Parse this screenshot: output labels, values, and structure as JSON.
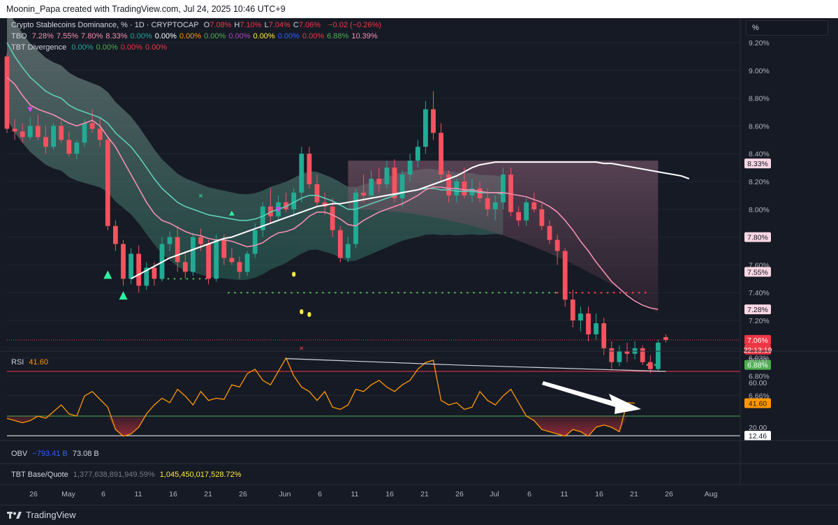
{
  "header": {
    "credit": "Moonin_Papa created with TradingView.com, Jul 24, 2025 10:46 UTC+9"
  },
  "legend": {
    "main_prefix": "Crypto Stablecoins Dominance, % · 1D · CRYPTOCAP",
    "ohlc": [
      {
        "k": "O",
        "v": "7.08%"
      },
      {
        "k": "H",
        "v": "7.10%"
      },
      {
        "k": "L",
        "v": "7.04%"
      },
      {
        "k": "C",
        "v": "7.06%"
      }
    ],
    "change": "−0.02 (−0.26%)",
    "tbo_label": "TBO",
    "tbo_values": [
      {
        "v": "7.28%",
        "c": "#f48fb1"
      },
      {
        "v": "7.55%",
        "c": "#f48fb1"
      },
      {
        "v": "7.80%",
        "c": "#f48fb1"
      },
      {
        "v": "8.33%",
        "c": "#f48fb1"
      },
      {
        "v": "0.00%",
        "c": "#26a69a"
      },
      {
        "v": "0.00%",
        "c": "#ffffff"
      },
      {
        "v": "0.00%",
        "c": "#ff9800"
      },
      {
        "v": "0.00%",
        "c": "#4caf50"
      },
      {
        "v": "0.00%",
        "c": "#ab47bc"
      },
      {
        "v": "0.00%",
        "c": "#ffeb3b"
      },
      {
        "v": "0.00%",
        "c": "#2962ff"
      },
      {
        "v": "0.00%",
        "c": "#f23645"
      },
      {
        "v": "6.88%",
        "c": "#4caf50"
      },
      {
        "v": "10.39%",
        "c": "#f48fb1"
      }
    ],
    "div_label": "TBT Divergence",
    "div_values": [
      {
        "v": "0.00%",
        "c": "#26a69a"
      },
      {
        "v": "0.00%",
        "c": "#4caf50"
      },
      {
        "v": "0.00%",
        "c": "#f23645"
      },
      {
        "v": "0.00%",
        "c": "#f23645"
      }
    ],
    "rsi_label": "RSI",
    "rsi_value": "41.60",
    "obv_label": "OBV",
    "obv_v1": "−793.41 B",
    "obv_v2": "73.08 B",
    "base_label": "TBT Base/Quote",
    "base_v1": "1,377,638,891,949.59%",
    "base_v2": "1,045,450,017,528.72%"
  },
  "pct_button": "%",
  "footer": {
    "brand": "TradingView"
  },
  "chart_data": {
    "type": "candlestick",
    "price_axis": {
      "ticks": [
        "9.20%",
        "9.00%",
        "8.80%",
        "8.60%",
        "8.40%",
        "8.20%",
        "8.00%",
        "7.80%",
        "7.60%",
        "7.40%",
        "7.20%",
        "7.00%",
        "6.93%",
        "6.80%",
        "6.66%"
      ],
      "tick_values": [
        9.2,
        9.0,
        8.8,
        8.6,
        8.4,
        8.2,
        8.0,
        7.8,
        7.6,
        7.4,
        7.2,
        7.0,
        6.93,
        6.8,
        6.66
      ],
      "badges": [
        {
          "label": "8.33%",
          "value": 8.33,
          "bg": "#f8d7e3",
          "fg": "#131722"
        },
        {
          "label": "7.80%",
          "value": 7.8,
          "bg": "#f8d7e3",
          "fg": "#131722"
        },
        {
          "label": "7.55%",
          "value": 7.55,
          "bg": "#f8d7e3",
          "fg": "#131722"
        },
        {
          "label": "7.28%",
          "value": 7.28,
          "bg": "#f8d7e3",
          "fg": "#131722"
        },
        {
          "label": "7.06%",
          "value": 7.06,
          "bg": "#f23645",
          "fg": "#ffffff"
        },
        {
          "label": "22:13:19",
          "value": 6.99,
          "bg": "#f23645",
          "fg": "#ffffff"
        },
        {
          "label": "6.88%",
          "value": 6.88,
          "bg": "#4caf50",
          "fg": "#ffffff"
        }
      ]
    },
    "time_axis": [
      "26",
      "May",
      "6",
      "11",
      "16",
      "21",
      "26",
      "Jun",
      "6",
      "11",
      "16",
      "21",
      "26",
      "Jul",
      "6",
      "11",
      "16",
      "21",
      "26",
      "Aug"
    ],
    "candles": [
      [
        9.1,
        9.12,
        8.55,
        8.58
      ],
      [
        8.58,
        8.65,
        8.5,
        8.56
      ],
      [
        8.56,
        8.62,
        8.48,
        8.52
      ],
      [
        8.52,
        8.66,
        8.5,
        8.6
      ],
      [
        8.6,
        8.68,
        8.5,
        8.52
      ],
      [
        8.52,
        8.6,
        8.4,
        8.45
      ],
      [
        8.45,
        8.62,
        8.43,
        8.6
      ],
      [
        8.6,
        8.64,
        8.48,
        8.5
      ],
      [
        8.5,
        8.56,
        8.38,
        8.4
      ],
      [
        8.4,
        8.5,
        8.36,
        8.48
      ],
      [
        8.48,
        8.65,
        8.45,
        8.62
      ],
      [
        8.62,
        8.72,
        8.55,
        8.58
      ],
      [
        8.58,
        8.66,
        8.45,
        8.5
      ],
      [
        8.5,
        8.52,
        7.85,
        7.88
      ],
      [
        7.88,
        7.92,
        7.7,
        7.75
      ],
      [
        7.75,
        7.78,
        7.45,
        7.5
      ],
      [
        7.5,
        7.72,
        7.46,
        7.68
      ],
      [
        7.68,
        7.74,
        7.4,
        7.45
      ],
      [
        7.45,
        7.62,
        7.42,
        7.58
      ],
      [
        7.58,
        7.62,
        7.45,
        7.5
      ],
      [
        7.5,
        7.8,
        7.48,
        7.75
      ],
      [
        7.75,
        7.84,
        7.7,
        7.8
      ],
      [
        7.8,
        7.88,
        7.55,
        7.62
      ],
      [
        7.62,
        7.7,
        7.5,
        7.55
      ],
      [
        7.55,
        7.83,
        7.52,
        7.8
      ],
      [
        7.8,
        7.86,
        7.7,
        7.75
      ],
      [
        7.75,
        7.78,
        7.46,
        7.5
      ],
      [
        7.5,
        7.82,
        7.48,
        7.78
      ],
      [
        7.78,
        7.82,
        7.6,
        7.65
      ],
      [
        7.65,
        7.72,
        7.6,
        7.62
      ],
      [
        7.62,
        7.66,
        7.5,
        7.55
      ],
      [
        7.55,
        7.7,
        7.52,
        7.68
      ],
      [
        7.68,
        7.9,
        7.65,
        7.85
      ],
      [
        7.85,
        8.05,
        7.8,
        8.02
      ],
      [
        8.02,
        8.15,
        7.9,
        7.95
      ],
      [
        7.95,
        8.1,
        7.92,
        8.05
      ],
      [
        8.05,
        8.12,
        7.98,
        8.0
      ],
      [
        8.0,
        8.15,
        7.95,
        8.12
      ],
      [
        8.12,
        8.45,
        8.05,
        8.4
      ],
      [
        8.4,
        8.45,
        8.15,
        8.18
      ],
      [
        8.18,
        8.25,
        8.02,
        8.05
      ],
      [
        8.05,
        8.12,
        7.96,
        8.02
      ],
      [
        8.02,
        8.08,
        7.8,
        7.85
      ],
      [
        7.85,
        7.88,
        7.62,
        7.65
      ],
      [
        7.65,
        7.8,
        7.62,
        7.75
      ],
      [
        7.75,
        8.15,
        7.72,
        8.12
      ],
      [
        8.12,
        8.25,
        8.05,
        8.1
      ],
      [
        8.1,
        8.28,
        8.08,
        8.22
      ],
      [
        8.22,
        8.3,
        8.12,
        8.18
      ],
      [
        8.18,
        8.35,
        8.15,
        8.3
      ],
      [
        8.3,
        8.36,
        8.05,
        8.08
      ],
      [
        8.08,
        8.28,
        8.02,
        8.25
      ],
      [
        8.25,
        8.4,
        8.2,
        8.35
      ],
      [
        8.35,
        8.5,
        8.3,
        8.45
      ],
      [
        8.45,
        8.78,
        8.4,
        8.72
      ],
      [
        8.72,
        8.85,
        8.5,
        8.55
      ],
      [
        8.55,
        8.62,
        8.2,
        8.25
      ],
      [
        8.25,
        8.28,
        8.05,
        8.1
      ],
      [
        8.1,
        8.22,
        8.05,
        8.2
      ],
      [
        8.2,
        8.3,
        8.08,
        8.1
      ],
      [
        8.1,
        8.22,
        8.05,
        8.15
      ],
      [
        8.15,
        8.2,
        8.05,
        8.08
      ],
      [
        8.08,
        8.15,
        7.95,
        8.0
      ],
      [
        8.0,
        8.1,
        7.92,
        8.05
      ],
      [
        8.05,
        8.3,
        8.0,
        8.25
      ],
      [
        8.25,
        8.3,
        7.95,
        7.98
      ],
      [
        7.98,
        8.02,
        7.88,
        7.92
      ],
      [
        7.92,
        8.08,
        7.88,
        8.05
      ],
      [
        8.05,
        8.12,
        7.98,
        8.0
      ],
      [
        8.0,
        8.05,
        7.85,
        7.88
      ],
      [
        7.88,
        7.92,
        7.75,
        7.78
      ],
      [
        7.78,
        7.82,
        7.6,
        7.7
      ],
      [
        7.7,
        7.72,
        7.3,
        7.35
      ],
      [
        7.35,
        7.42,
        7.15,
        7.2
      ],
      [
        7.2,
        7.3,
        7.12,
        7.25
      ],
      [
        7.25,
        7.3,
        7.05,
        7.1
      ],
      [
        7.1,
        7.25,
        7.06,
        7.18
      ],
      [
        7.18,
        7.22,
        6.95,
        7.0
      ],
      [
        7.0,
        7.05,
        6.85,
        6.9
      ],
      [
        6.9,
        7.02,
        6.87,
        6.98
      ],
      [
        6.98,
        7.04,
        6.9,
        6.96
      ],
      [
        6.96,
        7.05,
        6.92,
        7.0
      ],
      [
        7.0,
        7.02,
        6.88,
        6.9
      ],
      [
        6.9,
        6.95,
        6.82,
        6.85
      ],
      [
        6.85,
        7.06,
        6.83,
        7.04
      ],
      [
        7.08,
        7.1,
        7.04,
        7.06
      ]
    ],
    "lines": {
      "pink_fast": [
        8.95,
        8.9,
        8.82,
        8.75,
        8.72,
        8.7,
        8.68,
        8.65,
        8.62,
        8.6,
        8.62,
        8.64,
        8.6,
        8.52,
        8.45,
        8.35,
        8.25,
        8.15,
        8.05,
        7.97,
        7.92,
        7.9,
        7.87,
        7.84,
        7.82,
        7.81,
        7.79,
        7.78,
        7.78,
        7.77,
        7.75,
        7.73,
        7.74,
        7.76,
        7.8,
        7.83,
        7.84,
        7.86,
        7.9,
        7.95,
        7.98,
        7.98,
        7.96,
        7.93,
        7.89,
        7.88,
        7.92,
        7.95,
        7.98,
        8.0,
        8.02,
        8.04,
        8.07,
        8.1,
        8.14,
        8.16,
        8.16,
        8.15,
        8.15,
        8.14,
        8.14,
        8.13,
        8.12,
        8.12,
        8.12,
        8.11,
        8.1,
        8.09,
        8.07,
        8.05,
        8.02,
        7.98,
        7.92,
        7.85,
        7.77,
        7.7,
        7.62,
        7.55,
        7.48,
        7.43,
        7.38,
        7.34,
        7.31,
        7.29,
        7.28
      ],
      "white_base": [
        null,
        null,
        null,
        null,
        null,
        null,
        null,
        null,
        null,
        null,
        null,
        null,
        null,
        null,
        null,
        null,
        7.5,
        7.53,
        7.56,
        7.59,
        7.62,
        7.65,
        7.67,
        7.69,
        7.71,
        7.73,
        7.75,
        7.77,
        7.79,
        7.8,
        7.82,
        7.84,
        7.86,
        7.88,
        7.9,
        7.92,
        7.94,
        7.96,
        7.98,
        8.0,
        8.02,
        8.03,
        8.04,
        8.04,
        8.05,
        8.06,
        8.07,
        8.08,
        8.09,
        8.1,
        8.11,
        8.12,
        8.13,
        8.14,
        8.16,
        8.18,
        8.2,
        8.22,
        8.24,
        8.27,
        8.3,
        8.32,
        8.33,
        8.34,
        8.34,
        8.34,
        8.34,
        8.34,
        8.34,
        8.34,
        8.34,
        8.34,
        8.34,
        8.34,
        8.34,
        8.34,
        8.34,
        8.33,
        8.33,
        8.32,
        8.31,
        8.3,
        8.29,
        8.28,
        8.27,
        8.26,
        8.25,
        8.24,
        8.22
      ],
      "teal_mid": [
        9.2,
        9.1,
        9.02,
        8.95,
        8.9,
        8.85,
        8.82,
        8.8,
        8.75,
        8.72,
        8.7,
        8.68,
        8.66,
        8.62,
        8.55,
        8.5,
        8.45,
        8.38,
        8.3,
        8.22,
        8.15,
        8.1,
        8.05,
        8.02,
        8.0,
        7.98,
        7.96,
        7.95,
        7.94,
        7.93,
        7.92,
        7.92,
        7.93,
        7.95,
        7.98,
        8.0,
        8.02,
        8.05,
        8.08,
        8.1,
        8.1,
        8.08,
        8.06,
        8.03,
        8.0,
        8.0,
        8.02,
        8.04,
        8.06,
        8.08,
        8.1,
        8.12,
        8.13,
        8.14,
        8.15,
        8.15,
        8.14,
        8.14,
        8.13,
        8.13,
        8.13,
        8.12,
        8.12,
        8.12,
        8.11
      ]
    },
    "markers": {
      "green_triangles_up": [
        [
          13,
          7.53
        ],
        [
          15,
          7.38
        ]
      ],
      "small_teal_triangles": [
        [
          29,
          7.97
        ]
      ],
      "purple_triangles_down": [
        [
          3,
          8.72
        ],
        [
          35,
          8.0
        ]
      ],
      "green_x": [
        [
          25,
          8.1
        ]
      ],
      "red_x": [
        [
          38,
          7.0
        ]
      ],
      "yellow_marks": [
        [
          37,
          7.53
        ],
        [
          38,
          7.26
        ],
        [
          39,
          7.24
        ]
      ],
      "green_dots_level": 7.4,
      "red_dots_level": 7.4
    },
    "rsi": {
      "label": "RSI",
      "value": 41.6,
      "upper_band": 70,
      "lower_band": 30,
      "floor": 12.46,
      "ticks": [
        "80.00",
        "60.00",
        "20.00"
      ],
      "tick_values": [
        80,
        60,
        20
      ],
      "badges": [
        {
          "label": "41.60",
          "value": 41.6,
          "bg": "#ff9800",
          "fg": "#131722"
        },
        {
          "label": "12.46",
          "value": 12.46,
          "bg": "#ffffff",
          "fg": "#131722"
        }
      ],
      "values": [
        28,
        26,
        24,
        26,
        30,
        28,
        34,
        40,
        32,
        30,
        48,
        52,
        45,
        38,
        18,
        12,
        14,
        20,
        32,
        40,
        46,
        42,
        54,
        48,
        40,
        52,
        44,
        46,
        45,
        58,
        56,
        68,
        72,
        62,
        58,
        70,
        82,
        66,
        56,
        52,
        44,
        52,
        38,
        36,
        40,
        54,
        52,
        58,
        62,
        56,
        52,
        58,
        62,
        72,
        78,
        80,
        44,
        40,
        42,
        36,
        38,
        52,
        44,
        40,
        48,
        54,
        42,
        30,
        26,
        18,
        16,
        14,
        12,
        18,
        16,
        12,
        20,
        22,
        20,
        16,
        42,
        41.6
      ],
      "divergence_line": [
        [
          36,
          81.5
        ],
        [
          59,
          75.5
        ],
        [
          85,
          70
        ]
      ]
    }
  }
}
